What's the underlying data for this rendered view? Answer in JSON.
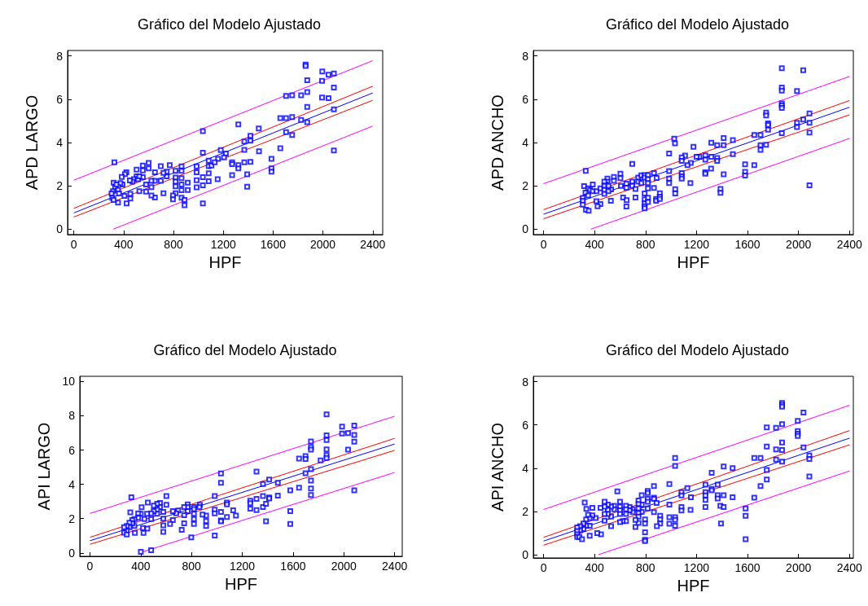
{
  "chart_data": [
    {
      "type": "scatter",
      "title": "Gráfico del Modelo Ajustado",
      "xlabel": "HPF",
      "ylabel": "APD LARGO",
      "xlim": [
        -50,
        2480
      ],
      "ylim": [
        -0.25,
        8.25
      ],
      "xticks": [
        0,
        400,
        800,
        1200,
        1600,
        2000,
        2400
      ],
      "yticks": [
        0,
        2,
        4,
        6,
        8
      ],
      "series": [
        {
          "color": "#0000ff",
          "marker": "square",
          "x": [
            326,
            1861,
            1861,
            1995,
            2045,
            2088,
            1993,
            1874,
            2088,
            1704,
            1753,
            1825,
            1874,
            1993,
            2045,
            1874,
            1658,
            1704,
            1753,
            1825,
            1874,
            1704,
            1753,
            2088,
            2088,
            1321,
            1485,
            1036,
            1418,
            1369,
            1418,
            1369,
            1487,
            1658,
            1587,
            1587,
            1587,
            1392,
            1392,
            1180,
            1221,
            1206,
            1158,
            1036,
            1083,
            1083,
            1105,
            1131,
            1271,
            1271,
            1321,
            1321,
            1369,
            1418,
            1271,
            1083,
            1083,
            1036,
            1036,
            1155,
            1036,
            986,
            986,
            986,
            986,
            865,
            865,
            865,
            865,
            865,
            865,
            889,
            889,
            915,
            915,
            817,
            817,
            817,
            817,
            817,
            796,
            796,
            770,
            746,
            746,
            720,
            698,
            698,
            720,
            651,
            651,
            651,
            623,
            623,
            623,
            601,
            601,
            580,
            580,
            554,
            554,
            554,
            526,
            504,
            504,
            482,
            471,
            450,
            454,
            454,
            422,
            411,
            385,
            424,
            407,
            391,
            374,
            355,
            320,
            331,
            314,
            303,
            309,
            320,
            355,
            363,
            342,
            515,
            526
          ],
          "values": [
            3.09,
            7.6,
            7.54,
            7.28,
            7.13,
            7.19,
            6.85,
            6.88,
            6.54,
            6.15,
            6.18,
            6.18,
            6.33,
            6.08,
            6.05,
            5.65,
            5.13,
            5.13,
            5.18,
            5.04,
            4.94,
            4.48,
            4.35,
            5.53,
            3.63,
            4.84,
            4.65,
            4.53,
            4.31,
            4.05,
            4.08,
            3.66,
            3.6,
            3.74,
            3.25,
            2.81,
            2.66,
            2.53,
            1.96,
            3.65,
            3.49,
            3.31,
            3.25,
            3.53,
            3.16,
            2.91,
            2.94,
            3.09,
            3.09,
            3.0,
            2.96,
            2.81,
            3.09,
            3.11,
            2.5,
            2.58,
            2.21,
            2.4,
            2.03,
            2.31,
            1.19,
            2.9,
            2.63,
            2.26,
            1.93,
            2.9,
            2.69,
            2.35,
            2.06,
            1.8,
            1.45,
            1.35,
            1.1,
            2.15,
            1.81,
            2.69,
            2.38,
            2.19,
            1.98,
            1.66,
            1.56,
            1.38,
            2.96,
            2.66,
            2.44,
            2.6,
            2.91,
            2.23,
            1.66,
            2.63,
            2.23,
            1.46,
            2.23,
            1.94,
            1.56,
            3.06,
            2.81,
            2.06,
            1.73,
            2.94,
            2.71,
            2.4,
            1.75,
            2.75,
            2.44,
            2.31,
            2.19,
            2.25,
            1.63,
            1.41,
            2.63,
            2.54,
            2.41,
            1.19,
            1.54,
            2.06,
            2.13,
            1.23,
            2.15,
            1.94,
            1.75,
            1.65,
            1.44,
            1.35,
            1.81,
            1.65,
            2.06,
            2.31,
            2.44
          ]
        },
        {
          "type": "line",
          "color": "#0000ff",
          "x": [
            0,
            2400
          ],
          "values": [
            0.75,
            6.29
          ]
        },
        {
          "type": "line",
          "color": "#ff0000",
          "x": [
            0,
            2400
          ],
          "values": [
            0.96,
            6.6
          ]
        },
        {
          "type": "line",
          "color": "#ff0000",
          "x": [
            0,
            2400
          ],
          "values": [
            0.56,
            5.95
          ]
        },
        {
          "type": "line",
          "color": "#ff00ff",
          "x": [
            0,
            2400
          ],
          "values": [
            2.26,
            7.78
          ]
        },
        {
          "type": "line",
          "color": "#ff00ff",
          "x": [
            316,
            2400
          ],
          "values": [
            0,
            4.76
          ]
        }
      ]
    },
    {
      "type": "scatter",
      "title": "Gráfico del Modelo Ajustado",
      "xlabel": "HPF",
      "ylabel": "APD ANCHO",
      "xlim": [
        -80,
        2430
      ],
      "ylim": [
        -0.25,
        8.25
      ],
      "xticks": [
        0,
        400,
        800,
        1200,
        1600,
        2000,
        2400
      ],
      "yticks": [
        0,
        2,
        4,
        6,
        8
      ],
      "series": [
        {
          "color": "#0000ff",
          "marker": "square",
          "x": [
            1869,
            2037,
            1869,
            1869,
            1988,
            1869,
            1869,
            1869,
            1746,
            1746,
            1761,
            1761,
            1761,
            1869,
            1988,
            1988,
            2037,
            2086,
            2086,
            2086,
            2086,
            1653,
            1702,
            1702,
            1702,
            1746,
            1653,
            1581,
            1581,
            1581,
            1413,
            1485,
            1316,
            1362,
            1413,
            1485,
            1362,
            1362,
            1316,
            1269,
            1269,
            1269,
            1269,
            1314,
            1413,
            1388,
            1388,
            1222,
            1201,
            1176,
            1155,
            1129,
            1110,
            1084,
            1084,
            1084,
            1084,
            1084,
            1152,
            1025,
            1031,
            985,
            985,
            985,
            985,
            1033,
            1033,
            696,
            603,
            603,
            552,
            552,
            501,
            501,
            488,
            530,
            528,
            607,
            624,
            650,
            650,
            652,
            650,
            696,
            696,
            721,
            721,
            743,
            743,
            767,
            767,
            793,
            793,
            793,
            793,
            793,
            793,
            793,
            819,
            819,
            819,
            819,
            819,
            819,
            866,
            887,
            866,
            883,
            883,
            912,
            912,
            912,
            331,
            318,
            329,
            308,
            308,
            308,
            333,
            354,
            350,
            365,
            386,
            386,
            350,
            414,
            446,
            424,
            416,
            446,
            477,
            477,
            477,
            477,
            509,
            509
          ],
          "values": [
            7.43,
            7.34,
            6.54,
            6.4,
            6.38,
            5.81,
            5.71,
            5.6,
            5.38,
            5.25,
            4.88,
            4.81,
            4.59,
            4.43,
            4.91,
            4.71,
            5.06,
            5.34,
            4.91,
            4.46,
            2.03,
            4.35,
            4.35,
            3.88,
            3.66,
            3.9,
            2.96,
            2.99,
            2.65,
            2.48,
            4.21,
            4.11,
            3.99,
            3.88,
            3.88,
            3.46,
            3.29,
            3.15,
            3.34,
            3.41,
            3.21,
            2.63,
            2.56,
            2.8,
            2.53,
            1.86,
            1.68,
            3.34,
            3.34,
            3.8,
            3.06,
            2.96,
            3.4,
            3.31,
            3.15,
            2.59,
            2.44,
            2.34,
            2.13,
            4.18,
            3.96,
            3.49,
            2.68,
            2.34,
            2.13,
            1.85,
            1.65,
            3.01,
            2.56,
            2.35,
            2.41,
            2.23,
            2.34,
            2.19,
            2.06,
            1.84,
            1.31,
            2.0,
            1.46,
            2.1,
            1.91,
            1.34,
            1.05,
            2.19,
            2.0,
            1.86,
            1.46,
            2.38,
            2.19,
            2.49,
            2.13,
            2.5,
            2.38,
            1.65,
            1.38,
            1.19,
            1.06,
            0.96,
            2.5,
            2.31,
            2.13,
            1.88,
            1.45,
            1.25,
            2.59,
            2.36,
            1.9,
            1.4,
            1.31,
            1.66,
            1.5,
            1.4,
            2.69,
            1.99,
            1.69,
            1.44,
            1.31,
            1.13,
            0.9,
            0.85,
            1.88,
            1.81,
            2.06,
            1.75,
            1.56,
            1.29,
            1.16,
            1.06,
            1.75,
            1.88,
            2.19,
            2.0,
            1.81,
            1.63,
            2.0,
            1.75
          ]
        },
        {
          "type": "line",
          "color": "#0000ff",
          "x": [
            0,
            2400
          ],
          "values": [
            0.69,
            5.63
          ]
        },
        {
          "type": "line",
          "color": "#ff0000",
          "x": [
            0,
            2400
          ],
          "values": [
            0.9,
            5.94
          ]
        },
        {
          "type": "line",
          "color": "#ff0000",
          "x": [
            0,
            2400
          ],
          "values": [
            0.48,
            5.28
          ]
        },
        {
          "type": "line",
          "color": "#ff00ff",
          "x": [
            0,
            2400
          ],
          "values": [
            2.1,
            7.05
          ]
        },
        {
          "type": "line",
          "color": "#ff00ff",
          "x": [
            371,
            2400
          ],
          "values": [
            0,
            4.19
          ]
        }
      ]
    },
    {
      "type": "scatter",
      "title": "Gráfico del Modelo Ajustado",
      "xlabel": "HPF",
      "ylabel": "API LARGO",
      "xlim": [
        -80,
        2460
      ],
      "ylim": [
        -0.2,
        10.3
      ],
      "xticks": [
        0,
        400,
        800,
        1200,
        1600,
        2000,
        2400
      ],
      "yticks": [
        0,
        2,
        4,
        6,
        8,
        10
      ],
      "series": [
        {
          "color": "#0000ff",
          "marker": "square",
          "x": [
            1864,
            1986,
            2082,
            1986,
            2033,
            1864,
            1864,
            2082,
            2082,
            1741,
            1741,
            1741,
            1864,
            2033,
            1647,
            1698,
            1698,
            1817,
            1864,
            1864,
            1698,
            1741,
            1741,
            1741,
            1741,
            1647,
            1578,
            1578,
            1578,
            2082,
            1312,
            1412,
            1363,
            1480,
            1480,
            1412,
            1412,
            1363,
            1312,
            1363,
            1387,
            1263,
            1263,
            1263,
            1312,
            1387,
            1032,
            1032,
            983,
            1079,
            1079,
            1128,
            1150,
            983,
            983,
            1032,
            1032,
            1032,
            1079,
            983,
            915,
            915,
            915,
            887,
            866,
            862,
            819,
            819,
            819,
            819,
            819,
            798,
            770,
            770,
            770,
            742,
            742,
            742,
            723,
            695,
            680,
            653,
            653,
            631,
            602,
            602,
            578,
            578,
            578,
            578,
            552,
            552,
            529,
            529,
            529,
            503,
            503,
            482,
            482,
            456,
            450,
            429,
            407,
            401,
            418,
            452,
            422,
            401,
            482,
            326,
            318,
            380,
            380,
            350,
            350,
            333,
            333,
            311,
            311,
            290,
            290,
            269,
            269,
            290,
            354
          ],
          "values": [
            8.08,
            7.37,
            7.43,
            6.96,
            6.99,
            6.85,
            6.58,
            6.88,
            6.49,
            6.5,
            6.17,
            6.02,
            6.03,
            6.02,
            5.5,
            5.64,
            5.48,
            5.39,
            5.7,
            5.54,
            4.65,
            4.88,
            4.22,
            3.75,
            3.37,
            3.8,
            3.65,
            2.44,
            1.69,
            3.65,
            4.74,
            4.28,
            4.02,
            4.09,
            3.34,
            3.23,
            3.17,
            3.31,
            3.15,
            2.68,
            2.87,
            3.04,
            2.9,
            2.58,
            2.5,
            1.84,
            4.63,
            4.09,
            3.31,
            2.93,
            2.83,
            2.49,
            2.17,
            2.52,
            2.31,
            2.39,
            1.89,
            1.84,
            2.09,
            1.01,
            2.17,
            1.86,
            1.57,
            2.24,
            2.8,
            2.68,
            2.68,
            2.55,
            2.28,
            1.97,
            1.69,
            0.9,
            2.83,
            2.68,
            2.44,
            2.68,
            2.2,
            1.73,
            1.34,
            2.47,
            2.31,
            2.44,
            1.92,
            1.69,
            3.31,
            2.8,
            2.39,
            2.0,
            1.61,
            1.23,
            2.91,
            2.68,
            2.87,
            2.52,
            2.28,
            2.76,
            2.44,
            2.31,
            1.97,
            2.94,
            2.28,
            1.97,
            2.66,
            2.28,
            1.45,
            1.42,
            1.17,
            0.06,
            0.16,
            3.24,
            2.36,
            2.31,
            2.05,
            1.97,
            1.57,
            1.92,
            1.73,
            1.76,
            1.5,
            1.57,
            1.29,
            1.5,
            1.18,
            1.07,
            1.17
          ]
        },
        {
          "type": "line",
          "color": "#0000ff",
          "x": [
            0,
            2400
          ],
          "values": [
            0.71,
            6.35
          ]
        },
        {
          "type": "line",
          "color": "#ff0000",
          "x": [
            0,
            2400
          ],
          "values": [
            0.91,
            6.68
          ]
        },
        {
          "type": "line",
          "color": "#ff0000",
          "x": [
            0,
            2400
          ],
          "values": [
            0.5,
            5.98
          ]
        },
        {
          "type": "line",
          "color": "#ff00ff",
          "x": [
            0,
            2400
          ],
          "values": [
            2.3,
            7.97
          ]
        },
        {
          "type": "line",
          "color": "#ff00ff",
          "x": [
            401,
            2400
          ],
          "values": [
            0.03,
            4.69
          ]
        }
      ]
    },
    {
      "type": "scatter",
      "title": "Gráfico del Modelo Ajustado",
      "xlabel": "HPF",
      "ylabel": "API ANCHO",
      "xlim": [
        -80,
        2430
      ],
      "ylim": [
        -0.15,
        8.25
      ],
      "xticks": [
        0,
        400,
        800,
        1200,
        1600,
        2000,
        2400
      ],
      "yticks": [
        0,
        2,
        4,
        6,
        8
      ],
      "series": [
        {
          "color": "#0000ff",
          "marker": "square",
          "x": [
            1871,
            1871,
            1871,
            2039,
            1994,
            1871,
            1824,
            1751,
            1994,
            1994,
            1994,
            2039,
            1871,
            1871,
            1824,
            1751,
            1824,
            1871,
            2085,
            2085,
            2085,
            1653,
            1702,
            1751,
            1751,
            1702,
            1653,
            1585,
            1585,
            1585,
            1413,
            1483,
            1319,
            1270,
            1319,
            1319,
            1270,
            1270,
            1270,
            1270,
            1366,
            1366,
            1366,
            1413,
            1483,
            1387,
            1413,
            1392,
            1032,
            1032,
            987,
            1128,
            1082,
            1082,
            1156,
            1082,
            1082,
            1153,
            987,
            987,
            1032,
            1032,
            1032,
            987,
            866,
            866,
            866,
            887,
            866,
            915,
            915,
            915,
            889,
            817,
            817,
            817,
            817,
            817,
            770,
            770,
            770,
            745,
            745,
            745,
            745,
            745,
            745,
            796,
            796,
            796,
            796,
            796,
            721,
            721,
            700,
            700,
            675,
            675,
            647,
            647,
            647,
            647,
            621,
            600,
            600,
            600,
            600,
            600,
            579,
            553,
            553,
            530,
            530,
            530,
            504,
            504,
            504,
            479,
            479,
            479,
            479,
            447,
            451,
            421,
            409,
            383,
            383,
            362,
            362,
            362,
            349,
            336,
            323,
            334,
            334,
            313,
            313,
            287,
            287,
            264,
            264,
            264,
            264,
            281,
            302
          ],
          "values": [
            7.02,
            6.93,
            6.85,
            6.57,
            6.19,
            6.04,
            5.87,
            5.89,
            5.72,
            5.59,
            5.49,
            4.96,
            5.19,
            4.84,
            4.87,
            5.0,
            4.4,
            4.3,
            4.59,
            4.43,
            3.62,
            4.47,
            4.47,
            3.92,
            3.48,
            3.17,
            2.64,
            2.14,
            1.8,
            0.72,
            4.08,
            4.0,
            3.79,
            3.24,
            3.04,
            2.98,
            2.89,
            2.74,
            2.53,
            2.2,
            3.24,
            2.75,
            2.6,
            2.75,
            2.66,
            2.26,
            2.2,
            1.44,
            4.47,
            4.11,
            3.27,
            3.08,
            2.89,
            2.74,
            2.66,
            2.2,
            2.04,
            2.07,
            2.32,
            1.73,
            1.73,
            1.61,
            1.34,
            1.43,
            3.17,
            2.64,
            2.58,
            2.39,
            1.97,
            1.8,
            1.63,
            1.44,
            1.32,
            2.95,
            2.85,
            2.58,
            2.45,
            2.14,
            2.75,
            2.32,
            1.98,
            2.51,
            2.35,
            2.14,
            1.92,
            1.76,
            1.47,
            1.63,
            1.44,
            1.04,
            0.69,
            0.63,
            1.61,
            1.28,
            2.1,
            1.97,
            2.2,
            2.05,
            2.26,
            2.1,
            1.88,
            1.55,
            1.55,
            2.45,
            2.22,
            2.05,
            1.88,
            1.51,
            2.93,
            2.26,
            2.1,
            2.22,
            1.76,
            1.32,
            2.32,
            2.07,
            1.88,
            2.45,
            2.22,
            1.88,
            1.57,
            2.17,
            0.94,
            1.0,
            1.7,
            2.17,
            1.82,
            1.7,
            1.34,
            0.88,
            1.85,
            2.12,
            2.41,
            1.63,
            1.34,
            1.44,
            1.19,
            1.32,
            1.13,
            1.26,
            1.09,
            0.94,
            0.82,
            0.82,
            0.72
          ]
        },
        {
          "type": "line",
          "color": "#0000ff",
          "x": [
            0,
            2400
          ],
          "values": [
            0.63,
            5.39
          ]
        },
        {
          "type": "line",
          "color": "#ff0000",
          "x": [
            0,
            2400
          ],
          "values": [
            0.8,
            5.74
          ]
        },
        {
          "type": "line",
          "color": "#ff0000",
          "x": [
            0,
            2400
          ],
          "values": [
            0.44,
            5.08
          ]
        },
        {
          "type": "line",
          "color": "#ff00ff",
          "x": [
            0,
            2400
          ],
          "values": [
            2.09,
            6.91
          ]
        },
        {
          "type": "line",
          "color": "#ff00ff",
          "x": [
            430,
            2400
          ],
          "values": [
            0,
            3.87
          ]
        }
      ]
    }
  ]
}
